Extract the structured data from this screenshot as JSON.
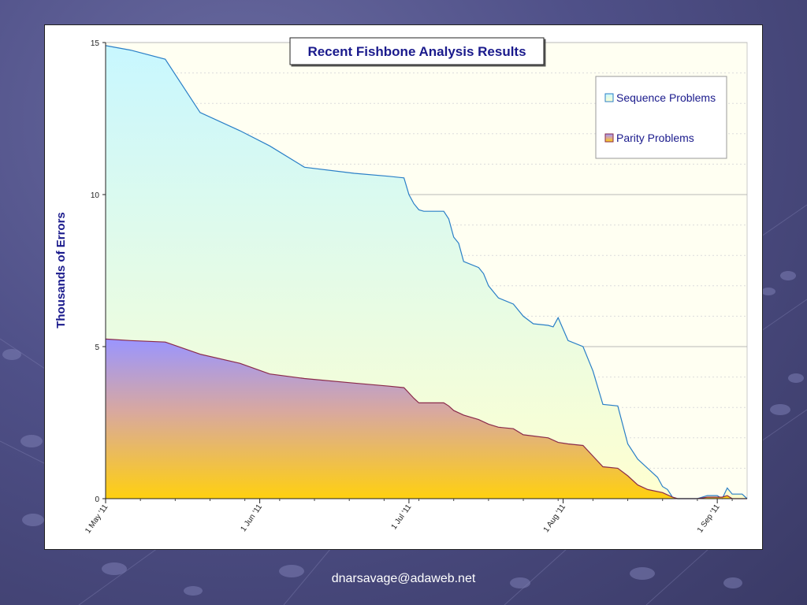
{
  "slide": {
    "footer": "dnarsavage@adaweb.net"
  },
  "chart_data": {
    "type": "area",
    "stacking": "overlap",
    "title": "Recent Fishbone Analysis Results",
    "ylabel": "Thousands of Errors",
    "xlabel": "",
    "ylim": [
      0,
      15
    ],
    "yticks": [
      0,
      5,
      10,
      15
    ],
    "xlim": [
      "2011-05-01",
      "2011-09-07"
    ],
    "xticks": [
      {
        "date": "2011-05-01",
        "label": "1 May '11"
      },
      {
        "date": "2011-06-01",
        "label": "1 Jun '11"
      },
      {
        "date": "2011-07-01",
        "label": "1 Jul '11"
      },
      {
        "date": "2011-08-01",
        "label": "1 Aug '11"
      },
      {
        "date": "2011-09-01",
        "label": "1 Sep '11"
      }
    ],
    "grid": {
      "major": true,
      "minor": true
    },
    "legend_position": "top-right",
    "series": [
      {
        "name": "Sequence Problems",
        "line_color": "#2a7fc7",
        "fill_top": "#c8f7ff",
        "fill_bottom": "#ffffd0",
        "points": [
          [
            "2011-05-01",
            14.9
          ],
          [
            "2011-05-06",
            14.75
          ],
          [
            "2011-05-13",
            14.45
          ],
          [
            "2011-05-20",
            12.7
          ],
          [
            "2011-05-28",
            12.1
          ],
          [
            "2011-06-03",
            11.6
          ],
          [
            "2011-06-10",
            10.9
          ],
          [
            "2011-06-20",
            10.7
          ],
          [
            "2011-06-27",
            10.6
          ],
          [
            "2011-06-30",
            10.55
          ],
          [
            "2011-07-01",
            10.0
          ],
          [
            "2011-07_02",
            9.7
          ],
          [
            "2011-07-03",
            9.5
          ],
          [
            "2011-07-04",
            9.45
          ],
          [
            "2011-07-08",
            9.45
          ],
          [
            "2011-07-09",
            9.2
          ],
          [
            "2011-07-10",
            8.6
          ],
          [
            "2011-07-11",
            8.4
          ],
          [
            "2011-07-12",
            7.8
          ],
          [
            "2011-07-15",
            7.6
          ],
          [
            "2011-07-16",
            7.4
          ],
          [
            "2011-07-17",
            7.0
          ],
          [
            "2011-07-19",
            6.6
          ],
          [
            "2011-07-22",
            6.4
          ],
          [
            "2011-07-24",
            6.0
          ],
          [
            "2011-07-26",
            5.75
          ],
          [
            "2011-07-29",
            5.7
          ],
          [
            "2011-07-30",
            5.65
          ],
          [
            "2011-07-31",
            5.95
          ],
          [
            "2011-08-02",
            5.2
          ],
          [
            "2011-08-05",
            5.0
          ],
          [
            "2011-08-07",
            4.2
          ],
          [
            "2011-08-09",
            3.1
          ],
          [
            "2011-08-12",
            3.05
          ],
          [
            "2011-08-14",
            1.8
          ],
          [
            "2011-08-16",
            1.3
          ],
          [
            "2011-08-18",
            1.0
          ],
          [
            "2011-08-20",
            0.7
          ],
          [
            "2011-08-21",
            0.4
          ],
          [
            "2011-08-22",
            0.3
          ],
          [
            "2011-08-23",
            0.05
          ],
          [
            "2011-08-24",
            0.0
          ],
          [
            "2011-08-28",
            0.0
          ],
          [
            "2011-08-30",
            0.1
          ],
          [
            "2011-09-01",
            0.1
          ],
          [
            "2011-09-02",
            0.0
          ],
          [
            "2011-09-03",
            0.35
          ],
          [
            "2011-09-04",
            0.15
          ],
          [
            "2011-09-06",
            0.15
          ],
          [
            "2011-09-07",
            0.0
          ]
        ]
      },
      {
        "name": "Parity Problems",
        "line_color": "#8a2a4a",
        "fill_top": "#9a95ff",
        "fill_mid": "#d8a8a0",
        "fill_bottom": "#ffd010",
        "points": [
          [
            "2011-05-01",
            5.25
          ],
          [
            "2011-05-06",
            5.2
          ],
          [
            "2011-05-13",
            5.15
          ],
          [
            "2011-05-20",
            4.75
          ],
          [
            "2011-05-28",
            4.45
          ],
          [
            "2011-06-03",
            4.1
          ],
          [
            "2011-06-10",
            3.95
          ],
          [
            "2011-06-20",
            3.8
          ],
          [
            "2011-06-27",
            3.7
          ],
          [
            "2011-06-30",
            3.65
          ],
          [
            "2011-07-02",
            3.3
          ],
          [
            "2011-07-03",
            3.15
          ],
          [
            "2011-07-08",
            3.15
          ],
          [
            "2011-07-09",
            3.05
          ],
          [
            "2011-07-10",
            2.9
          ],
          [
            "2011-07-12",
            2.75
          ],
          [
            "2011-07-15",
            2.6
          ],
          [
            "2011-07-17",
            2.45
          ],
          [
            "2011-07-19",
            2.35
          ],
          [
            "2011-07-22",
            2.3
          ],
          [
            "2011-07-24",
            2.1
          ],
          [
            "2011-07-29",
            2.0
          ],
          [
            "2011-07-31",
            1.85
          ],
          [
            "2011-08-02",
            1.8
          ],
          [
            "2011-08-05",
            1.75
          ],
          [
            "2011-08-07",
            1.4
          ],
          [
            "2011-08-09",
            1.05
          ],
          [
            "2011-08-12",
            1.0
          ],
          [
            "2011-08-14",
            0.75
          ],
          [
            "2011-08-16",
            0.45
          ],
          [
            "2011-08-18",
            0.3
          ],
          [
            "2011-08-21",
            0.2
          ],
          [
            "2011-08-23",
            0.05
          ],
          [
            "2011-08-24",
            0.0
          ],
          [
            "2011-08-28",
            0.0
          ],
          [
            "2011-08-30",
            0.05
          ],
          [
            "2011-09-02",
            0.05
          ],
          [
            "2011-09-03",
            0.1
          ],
          [
            "2011-09-04",
            0.0
          ],
          [
            "2011-09-07",
            0.0
          ]
        ]
      }
    ]
  }
}
